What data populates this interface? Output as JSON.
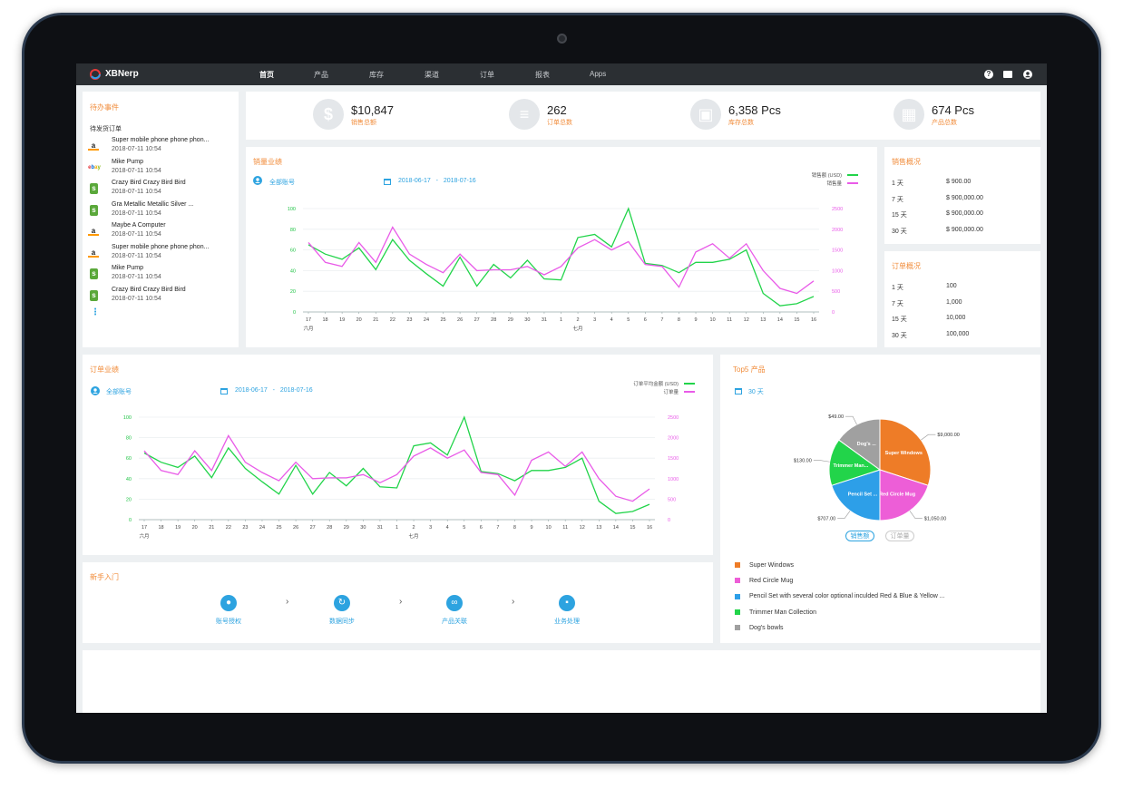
{
  "app": {
    "brand": "XBNerp"
  },
  "nav": {
    "items": [
      "首页",
      "产品",
      "库存",
      "渠道",
      "订单",
      "报表",
      "Apps"
    ],
    "active_index": 0
  },
  "header_icons": [
    "help-icon",
    "mail-icon",
    "user-icon"
  ],
  "todo": {
    "title": "待办事件",
    "subtitle": "待发货订单",
    "items": [
      {
        "channel": "amazon",
        "name": "Super mobile phone phone phon...",
        "time": "2018-07-11 10:54"
      },
      {
        "channel": "ebay",
        "name": "Mike Pump",
        "time": "2018-07-11 10:54"
      },
      {
        "channel": "shopify",
        "name": "Crazy Bird Crazy Bird Bird",
        "time": "2018-07-11 10:54"
      },
      {
        "channel": "shopify",
        "name": "Gra Metallic Metallic Silver ...",
        "time": "2018-07-11 10:54"
      },
      {
        "channel": "amazon",
        "name": "Maybe A Computer",
        "time": "2018-07-11 10:54"
      },
      {
        "channel": "amazon",
        "name": "Super mobile phone phone phon...",
        "time": "2018-07-11 10:54"
      },
      {
        "channel": "shopify",
        "name": "Mike Pump",
        "time": "2018-07-11 10:54"
      },
      {
        "channel": "shopify",
        "name": "Crazy Bird Crazy Bird Bird",
        "time": "2018-07-11 10:54"
      }
    ],
    "more": "⋮"
  },
  "kpis": [
    {
      "icon": "dollar-icon",
      "glyph": "$",
      "value": "$10,847",
      "label": "销售总额"
    },
    {
      "icon": "list-icon",
      "glyph": "≡",
      "value": "262",
      "label": "订单总数"
    },
    {
      "icon": "warehouse-icon",
      "glyph": "▣",
      "value": "6,358 Pcs",
      "label": "库存总数"
    },
    {
      "icon": "boxes-icon",
      "glyph": "▦",
      "value": "674 Pcs",
      "label": "产品总数"
    }
  ],
  "sales_chart": {
    "title": "销量业绩",
    "account": "全部账号",
    "date_from": "2018-06-17",
    "date_sep": "-",
    "date_to": "2018-07-16"
  },
  "order_chart": {
    "title": "订单业绩",
    "account": "全部账号",
    "date_from": "2018-06-17",
    "date_sep": "-",
    "date_to": "2018-07-16"
  },
  "chart_data": [
    {
      "type": "line",
      "x": [
        "17",
        "18",
        "19",
        "20",
        "21",
        "22",
        "23",
        "24",
        "25",
        "26",
        "27",
        "28",
        "29",
        "30",
        "31",
        "1",
        "2",
        "3",
        "4",
        "5",
        "6",
        "7",
        "8",
        "9",
        "10",
        "11",
        "12",
        "13",
        "14",
        "15",
        "16"
      ],
      "x_group_labels": [
        {
          "label": "六月",
          "at": "17"
        },
        {
          "label": "七月",
          "at": "2"
        }
      ],
      "ylim": [
        0,
        100
      ],
      "y2lim": [
        0,
        2500
      ],
      "yticks": [
        "0",
        "20",
        "40",
        "60",
        "80",
        "100"
      ],
      "y2ticks": [
        "0",
        "500",
        "1000",
        "1500",
        "2000",
        "2500"
      ],
      "legend_position": "top-right",
      "series": [
        {
          "name": "销售额 (USD)",
          "color": "#22d44a",
          "axis": "left",
          "values": [
            65,
            56,
            51,
            62,
            41,
            70,
            50,
            37,
            25,
            53,
            25,
            46,
            33,
            50,
            32,
            31,
            72,
            75,
            63,
            100,
            47,
            45,
            38,
            48,
            48,
            51,
            60,
            18,
            6,
            8,
            15
          ]
        },
        {
          "name": "销售量",
          "color": "#e95be8",
          "axis": "right",
          "values": [
            1680,
            1200,
            1100,
            1680,
            1200,
            2050,
            1400,
            1150,
            950,
            1400,
            1000,
            1020,
            1020,
            1100,
            900,
            1100,
            1550,
            1750,
            1500,
            1700,
            1150,
            1100,
            600,
            1450,
            1650,
            1300,
            1650,
            1000,
            570,
            450,
            750
          ]
        }
      ]
    },
    {
      "type": "line",
      "x": [
        "17",
        "18",
        "19",
        "20",
        "21",
        "22",
        "23",
        "24",
        "25",
        "26",
        "27",
        "28",
        "29",
        "30",
        "31",
        "1",
        "2",
        "3",
        "4",
        "5",
        "6",
        "7",
        "8",
        "9",
        "10",
        "11",
        "12",
        "13",
        "14",
        "15",
        "16"
      ],
      "x_group_labels": [
        {
          "label": "六月",
          "at": "17"
        },
        {
          "label": "七月",
          "at": "2"
        }
      ],
      "ylim": [
        0,
        100
      ],
      "y2lim": [
        0,
        2500
      ],
      "yticks": [
        "0",
        "20",
        "40",
        "60",
        "80",
        "100"
      ],
      "y2ticks": [
        "0",
        "500",
        "1000",
        "1500",
        "2000",
        "2500"
      ],
      "legend_position": "top-right",
      "series": [
        {
          "name": "订单平均金额 (USD)",
          "color": "#22d44a",
          "axis": "left",
          "values": [
            65,
            56,
            51,
            62,
            41,
            70,
            50,
            37,
            25,
            53,
            25,
            46,
            33,
            50,
            32,
            31,
            72,
            75,
            63,
            100,
            47,
            45,
            38,
            48,
            48,
            51,
            60,
            18,
            6,
            8,
            15
          ]
        },
        {
          "name": "订单量",
          "color": "#e95be8",
          "axis": "right",
          "values": [
            1680,
            1200,
            1100,
            1680,
            1200,
            2050,
            1400,
            1150,
            950,
            1400,
            1000,
            1020,
            1020,
            1100,
            900,
            1100,
            1550,
            1750,
            1500,
            1700,
            1150,
            1100,
            600,
            1450,
            1650,
            1300,
            1650,
            1000,
            570,
            450,
            750
          ]
        }
      ]
    },
    {
      "type": "pie",
      "labels": [
        "Super Windows",
        "Red Circle Mug",
        "Pencil Set with several color optional inculded Red & Blue & Yellow ...",
        "Trimmer Man Collection",
        "Dog's bowls"
      ],
      "slice_labels": [
        "Super Windows",
        "Red Circle Mug",
        "Pencil Set ...",
        "Trimmer Man...",
        "Dog's ..."
      ],
      "value_labels": [
        "$9,000.00",
        "$1,050.00",
        "$707.00",
        "$130.00",
        "$49.00"
      ],
      "values": [
        9000,
        1050,
        707,
        130,
        49
      ],
      "display_shares": [
        0.3,
        0.2,
        0.2,
        0.15,
        0.15
      ],
      "colors": [
        "#ee7c27",
        "#ed5ed7",
        "#2d9fe8",
        "#22d44a",
        "#a0a0a0"
      ]
    }
  ],
  "sales_summary": {
    "title": "销售概况",
    "rows": [
      {
        "period": "1 天",
        "value": "$ 900.00"
      },
      {
        "period": "7 天",
        "value": "$ 900,000.00"
      },
      {
        "period": "15 天",
        "value": "$ 900,000.00"
      },
      {
        "period": "30 天",
        "value": "$ 900,000.00"
      }
    ]
  },
  "order_summary": {
    "title": "订单概况",
    "rows": [
      {
        "period": "1 天",
        "value": "100"
      },
      {
        "period": "7 天",
        "value": "1,000"
      },
      {
        "period": "15 天",
        "value": "10,000"
      },
      {
        "period": "30 天",
        "value": "100,000"
      }
    ]
  },
  "top5": {
    "title": "Top5 产品",
    "range": "30 天",
    "toggle": [
      "销售额",
      "订单量"
    ],
    "active_toggle": 0
  },
  "getting_started": {
    "title": "新手入门",
    "steps": [
      {
        "icon": "account-icon",
        "label": "账号授权"
      },
      {
        "icon": "sync-icon",
        "label": "数据同步"
      },
      {
        "icon": "link-icon",
        "label": "产品关联"
      },
      {
        "icon": "briefcase-icon",
        "label": "业务处理"
      }
    ],
    "separator": "›"
  }
}
